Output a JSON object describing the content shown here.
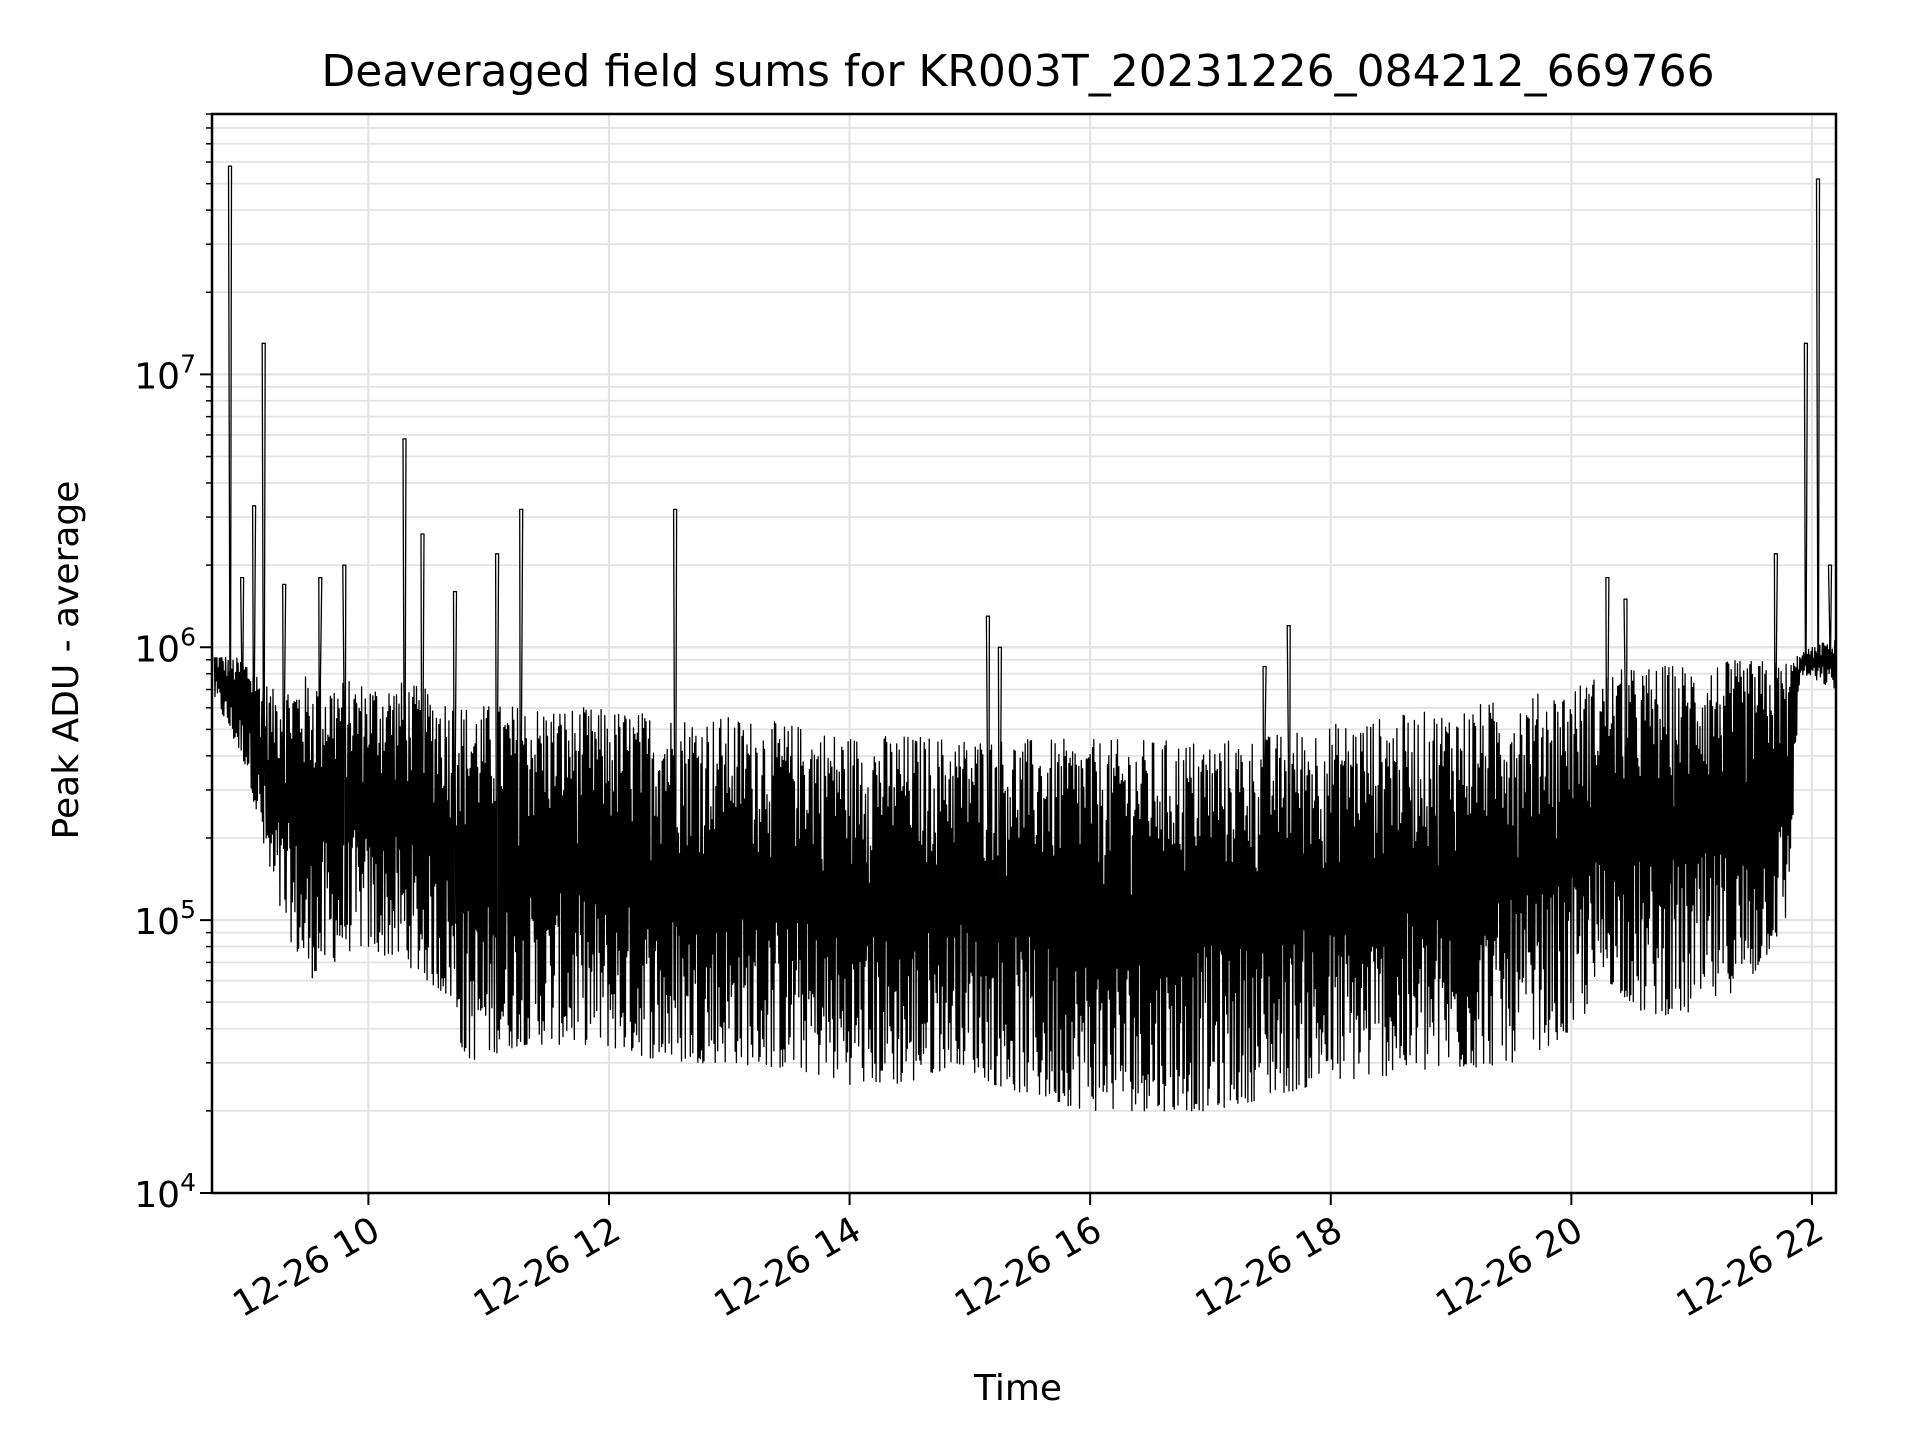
{
  "chart_data": {
    "type": "line",
    "title": "Deaveraged field sums for KR003T_20231226_084212_669766",
    "xlabel": "Time",
    "ylabel": "Peak ADU - average",
    "xscale": "time",
    "yscale": "log",
    "xlim_hours": [
      8.7,
      22.2
    ],
    "ylim": [
      10000,
      90000000
    ],
    "grid": true,
    "x_ticks": [
      {
        "hour": 10,
        "label": "12-26 10"
      },
      {
        "hour": 12,
        "label": "12-26 12"
      },
      {
        "hour": 14,
        "label": "12-26 14"
      },
      {
        "hour": 16,
        "label": "12-26 16"
      },
      {
        "hour": 18,
        "label": "12-26 18"
      },
      {
        "hour": 20,
        "label": "12-26 20"
      },
      {
        "hour": 22,
        "label": "12-26 22"
      }
    ],
    "y_ticks": [
      {
        "value": 10000,
        "base": "10",
        "exp": "4"
      },
      {
        "value": 100000,
        "base": "10",
        "exp": "5"
      },
      {
        "value": 1000000,
        "base": "10",
        "exp": "6"
      },
      {
        "value": 10000000,
        "base": "10",
        "exp": "7"
      }
    ],
    "series": [
      {
        "name": "field sums",
        "color": "#000000",
        "envelope": {
          "x_hours": [
            8.72,
            9.0,
            9.2,
            9.5,
            9.9,
            10.3,
            10.7,
            10.8,
            11.3,
            11.9,
            12.5,
            13.0,
            13.6,
            14.0,
            14.5,
            14.9,
            15.2,
            15.6,
            16.0,
            16.5,
            17.0,
            17.4,
            17.9,
            18.5,
            19.0,
            19.5,
            20.0,
            20.3,
            20.6,
            21.0,
            21.5,
            21.8,
            21.9,
            22.2
          ],
          "upper": [
            950000,
            900000,
            700000,
            800000,
            750000,
            750000,
            650000,
            620000,
            620000,
            600000,
            570000,
            560000,
            520000,
            480000,
            480000,
            470000,
            470000,
            460000,
            460000,
            460000,
            460000,
            470000,
            520000,
            560000,
            600000,
            650000,
            720000,
            820000,
            850000,
            880000,
            900000,
            900000,
            950000,
            1100000
          ],
          "lower": [
            650000,
            350000,
            120000,
            60000,
            80000,
            70000,
            50000,
            30000,
            35000,
            35000,
            30000,
            30000,
            28000,
            25000,
            25000,
            30000,
            25000,
            22000,
            20000,
            20000,
            20000,
            22000,
            25000,
            27000,
            28000,
            30000,
            38000,
            60000,
            45000,
            45000,
            60000,
            100000,
            800000,
            700000
          ]
        },
        "spikes": [
          {
            "hour": 8.85,
            "value": 58000000
          },
          {
            "hour": 8.95,
            "value": 1800000
          },
          {
            "hour": 9.05,
            "value": 3300000
          },
          {
            "hour": 9.13,
            "value": 13000000
          },
          {
            "hour": 9.3,
            "value": 1700000
          },
          {
            "hour": 9.6,
            "value": 1800000
          },
          {
            "hour": 9.8,
            "value": 2000000
          },
          {
            "hour": 10.3,
            "value": 5800000
          },
          {
            "hour": 10.45,
            "value": 2600000
          },
          {
            "hour": 10.72,
            "value": 1600000
          },
          {
            "hour": 11.07,
            "value": 2200000
          },
          {
            "hour": 11.27,
            "value": 3200000
          },
          {
            "hour": 12.55,
            "value": 3200000
          },
          {
            "hour": 15.15,
            "value": 1300000
          },
          {
            "hour": 15.25,
            "value": 1000000
          },
          {
            "hour": 17.45,
            "value": 850000
          },
          {
            "hour": 17.65,
            "value": 1200000
          },
          {
            "hour": 20.3,
            "value": 1800000
          },
          {
            "hour": 20.45,
            "value": 1500000
          },
          {
            "hour": 21.7,
            "value": 2200000
          },
          {
            "hour": 21.95,
            "value": 13000000
          },
          {
            "hour": 22.05,
            "value": 52000000
          },
          {
            "hour": 22.15,
            "value": 2000000
          }
        ]
      }
    ]
  }
}
